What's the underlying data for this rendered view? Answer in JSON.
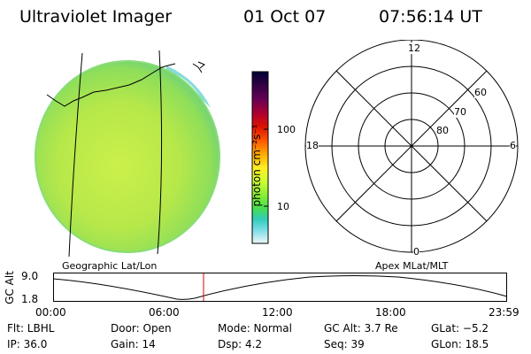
{
  "header": {
    "instrument": "Ultraviolet Imager",
    "date": "01 Oct 07",
    "time": "07:56:14 UT"
  },
  "colorbar": {
    "label": "photon cm⁻²s⁻¹",
    "ticks": [
      "100",
      "10"
    ],
    "stops": [
      "#000033",
      "#330044",
      "#660055",
      "#99003a",
      "#cc0000",
      "#ff3300",
      "#ff8800",
      "#ffcc00",
      "#ffff33",
      "#ccff33",
      "#99ee33",
      "#55dd44",
      "#33cc99",
      "#33ccdd",
      "#99ddee",
      "#e6f2f2"
    ]
  },
  "polar_plot": {
    "mlt_labels": {
      "top": "12",
      "right": "6",
      "bottom": "0",
      "left": "18"
    },
    "mlat_labels": [
      "60",
      "70",
      "80"
    ]
  },
  "map_labels": {
    "left": "Geographic Lat/Lon",
    "right": "Apex MLat/MLT"
  },
  "altitude_plot": {
    "ylabel": "GC Alt",
    "ymax": "9.0",
    "ymin": "1.8",
    "xticks": [
      "00:00",
      "06:00",
      "12:00",
      "18:00",
      "23:59"
    ],
    "current_time_marker": "07:56",
    "marker_color": "#dd0000"
  },
  "footer": {
    "flt": "Flt: LBHL",
    "door": "Door: Open",
    "mode": "Mode: Normal",
    "gc_alt": "GC Alt: 3.7 Re",
    "glat": "GLat:  −5.2",
    "ip": "IP: 36.0",
    "gain": "Gain: 14",
    "dsp": "Dsp:     4.2",
    "seq": "Seq: 39",
    "glon": "GLon:  18.5"
  }
}
